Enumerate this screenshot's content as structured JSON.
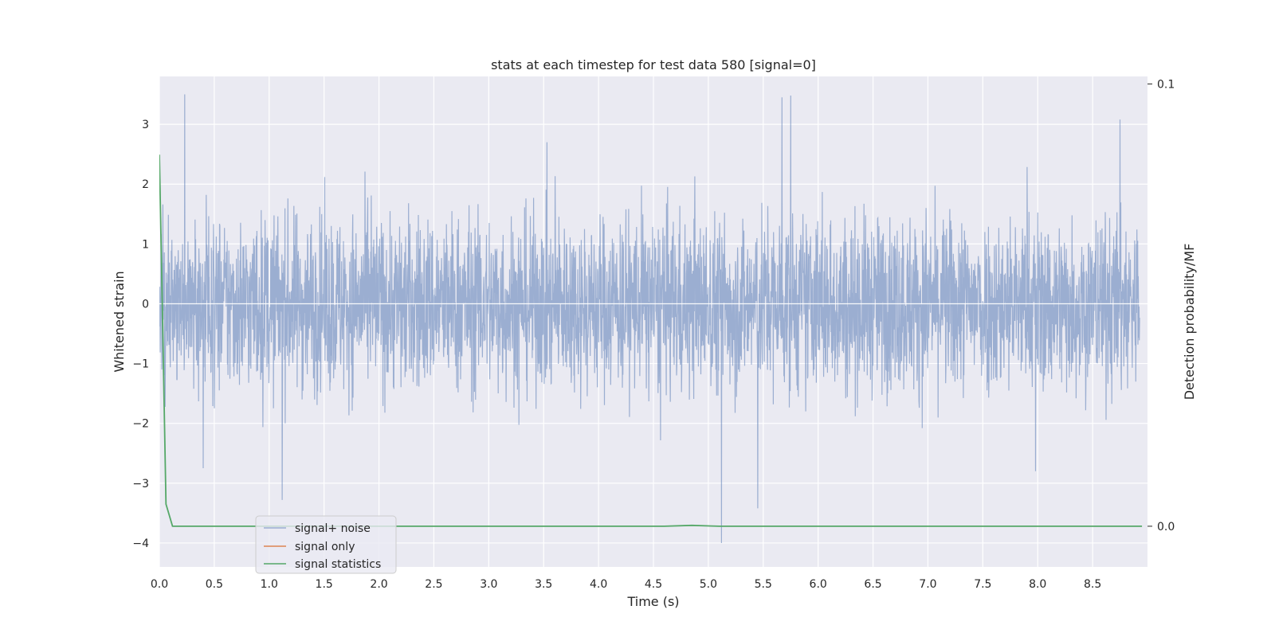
{
  "chart_data": {
    "type": "line",
    "title": "stats at each timestep for test data 580 [signal=0]",
    "xlabel": "Time (s)",
    "ylabel": "Whitened strain",
    "y2label": "Detection probability/MF",
    "xlim": [
      0,
      9.0
    ],
    "ylim": [
      -4.4,
      3.8
    ],
    "y2lim": [
      -0.0092,
      0.1017
    ],
    "xticks": [
      "0.0",
      "0.5",
      "1.0",
      "1.5",
      "2.0",
      "2.5",
      "3.0",
      "3.5",
      "4.0",
      "4.5",
      "5.0",
      "5.5",
      "6.0",
      "6.5",
      "7.0",
      "7.5",
      "8.0",
      "8.5"
    ],
    "yticks": [
      "3",
      "2",
      "1",
      "0",
      "−1",
      "−2",
      "−3",
      "−4"
    ],
    "y2ticks": [
      "0.1",
      "0.0"
    ],
    "grid": true,
    "legend_location": "lower-left",
    "noise_series": {
      "name": "signal+ noise",
      "color": "#4c72b0",
      "description": "whitened strain noise, roughly ±1.5 band with spikes",
      "notable_peaks": [
        {
          "x": 0.23,
          "y": 3.5
        },
        {
          "x": 5.67,
          "y": 3.45
        },
        {
          "x": 5.75,
          "y": 3.48
        },
        {
          "x": 8.75,
          "y": 3.08
        },
        {
          "x": 5.12,
          "y": -4.0
        },
        {
          "x": 5.45,
          "y": -3.42
        },
        {
          "x": 1.12,
          "y": -3.28
        },
        {
          "x": 0.4,
          "y": -2.75
        },
        {
          "x": 7.98,
          "y": -2.8
        }
      ]
    },
    "series": [
      {
        "name": "signal only",
        "color": "#dd8452",
        "values": []
      },
      {
        "name": "signal statistics",
        "color": "#55a868",
        "axis": "right",
        "x": [
          0.0,
          0.03,
          0.06,
          0.12,
          0.5,
          1.0,
          2.0,
          3.0,
          4.0,
          4.6,
          4.85,
          5.1,
          6.0,
          7.0,
          8.0,
          8.95
        ],
        "values": [
          0.084,
          0.046,
          0.005,
          0.0,
          0.0,
          0.0,
          0.0,
          0.0,
          0.0,
          0.0,
          0.0002,
          0.0,
          0.0,
          0.0,
          0.0,
          0.0
        ]
      }
    ]
  }
}
